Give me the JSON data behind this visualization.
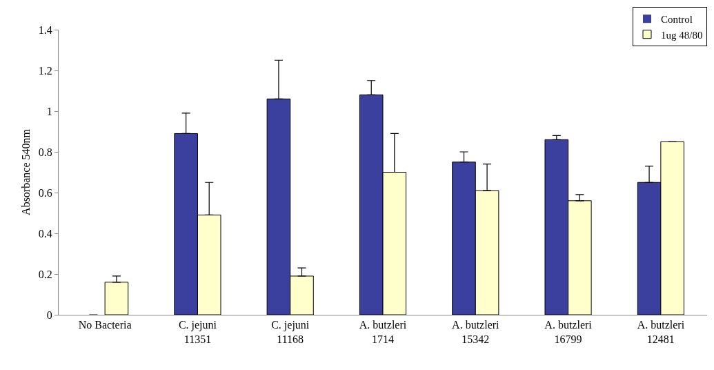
{
  "chart_data": {
    "type": "bar",
    "ylabel": "Absorbance 540nm",
    "categories": [
      "No Bacteria",
      "C. jejuni\n11351",
      "C. jejuni\n11168",
      "A. butzleri\n1714",
      "A. butzleri\n15342",
      "A. butzleri\n16799",
      "A. butzleri\n12481"
    ],
    "series": [
      {
        "name": "Control",
        "color": "#3b3f9e",
        "values": [
          0,
          0.89,
          1.06,
          1.08,
          0.75,
          0.86,
          0.65
        ],
        "errors": [
          null,
          [
            0.89,
            0.99
          ],
          [
            1.06,
            1.25
          ],
          [
            1.08,
            1.15
          ],
          [
            0.75,
            0.8
          ],
          [
            0.86,
            0.88
          ],
          [
            0.65,
            0.73
          ]
        ]
      },
      {
        "name": "1ug 48/80",
        "color": "#ffffcc",
        "values": [
          0.16,
          0.49,
          0.19,
          0.7,
          0.61,
          0.56,
          0.85
        ],
        "errors": [
          [
            0.16,
            0.19
          ],
          [
            0.49,
            0.65
          ],
          [
            0.19,
            0.23
          ],
          [
            0.7,
            0.89
          ],
          [
            0.61,
            0.74
          ],
          [
            0.56,
            0.59
          ],
          null
        ]
      }
    ],
    "ylim": [
      0,
      1.4
    ],
    "yticks": [
      0,
      0.2,
      0.4,
      0.6,
      0.8,
      1,
      1.2,
      1.4
    ],
    "grid": false,
    "legend": "top right"
  }
}
